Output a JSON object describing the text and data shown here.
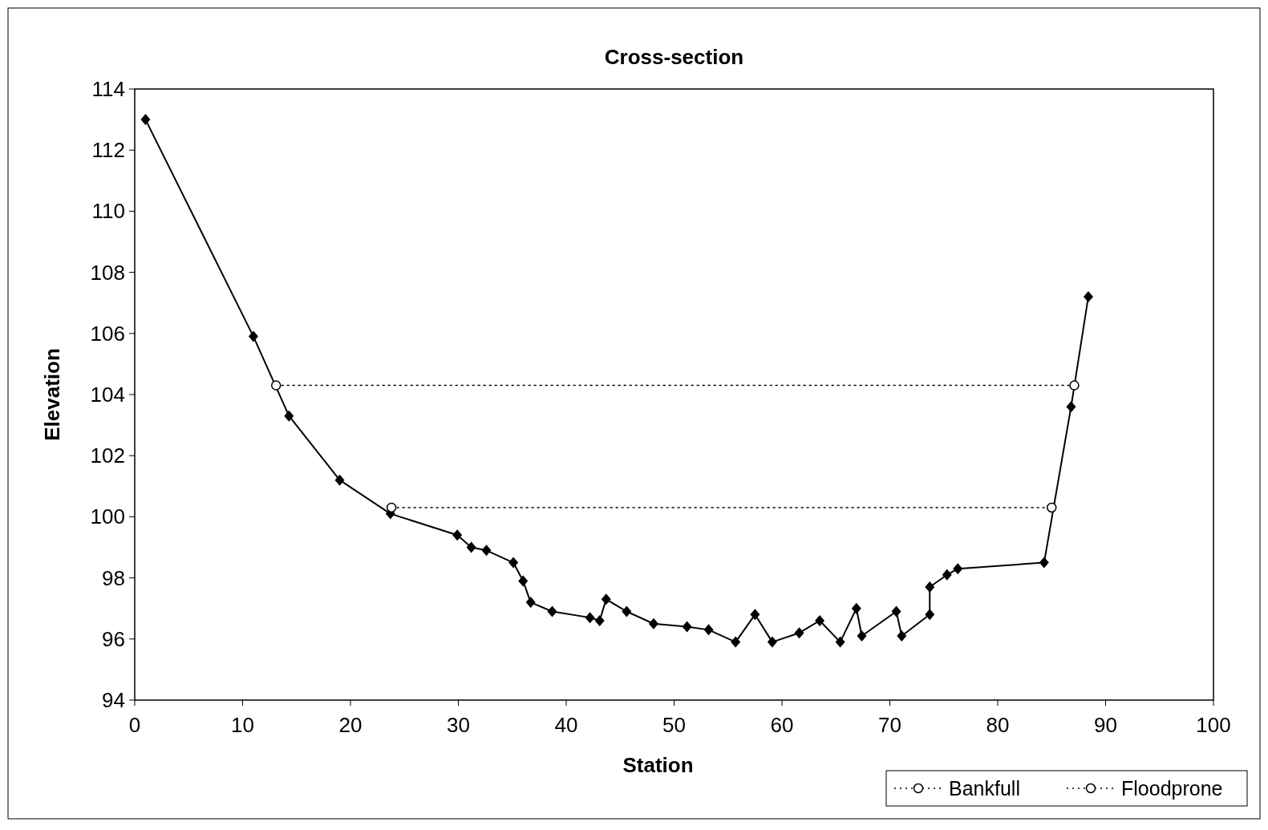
{
  "chart_data": {
    "type": "line",
    "title": "Cross-section",
    "xlabel": "Station",
    "ylabel": "Elevation",
    "xlim": [
      0,
      100
    ],
    "xticks": [
      0,
      10,
      20,
      30,
      40,
      50,
      60,
      70,
      80,
      90,
      100
    ],
    "ylim": [
      94,
      114
    ],
    "yticks": [
      94,
      96,
      98,
      100,
      102,
      104,
      106,
      108,
      110,
      112,
      114
    ],
    "grid": false,
    "legend": "bottom right",
    "series": [
      {
        "color": "#000000",
        "marker": "diamond",
        "line_style": "solid",
        "x": [
          1.0,
          11.0,
          14.3,
          19.0,
          23.7,
          29.9,
          31.2,
          32.6,
          35.1,
          36.0,
          36.7,
          38.7,
          42.2,
          43.1,
          43.7,
          45.6,
          48.1,
          51.2,
          53.2,
          55.7,
          57.5,
          59.1,
          61.6,
          63.5,
          65.4,
          66.9,
          67.4,
          70.6,
          71.1,
          73.7,
          73.7,
          75.3,
          76.3,
          84.3,
          86.8,
          88.4
        ],
        "values": [
          113.0,
          105.9,
          103.3,
          101.2,
          100.1,
          99.4,
          99.0,
          98.9,
          98.5,
          97.9,
          97.2,
          96.9,
          96.7,
          96.6,
          97.3,
          96.9,
          96.5,
          96.4,
          96.3,
          95.9,
          96.8,
          95.9,
          96.2,
          96.6,
          95.9,
          97.0,
          96.1,
          96.9,
          96.1,
          96.8,
          97.7,
          98.1,
          98.3,
          98.5,
          103.6,
          107.2
        ]
      },
      {
        "name": "Bankfull",
        "color": "#000000",
        "marker": "circle",
        "line_style": "dotted",
        "x": [
          23.8,
          85.0
        ],
        "values": [
          100.3,
          100.3
        ]
      },
      {
        "name": "Floodprone",
        "color": "#000000",
        "marker": "circle",
        "line_style": "dotted",
        "x": [
          13.1,
          87.1
        ],
        "values": [
          104.3,
          104.3
        ]
      }
    ]
  }
}
